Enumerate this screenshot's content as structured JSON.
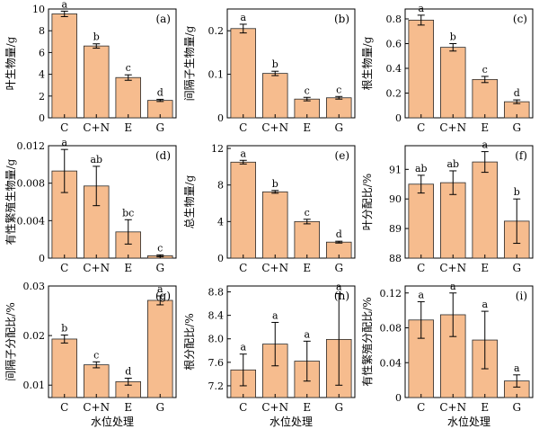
{
  "chart_data": [
    {
      "type": "bar",
      "panel_label": "(a)",
      "ylabel": "叶生物量/g",
      "xlabel": "",
      "categories": [
        "C",
        "C+N",
        "E",
        "G"
      ],
      "values": [
        9.55,
        6.6,
        3.7,
        1.6
      ],
      "errors": [
        0.25,
        0.2,
        0.25,
        0.1
      ],
      "letters": [
        "a",
        "b",
        "c",
        "d"
      ],
      "ylim": [
        0,
        10
      ],
      "yticks": [
        "0",
        "2",
        "4",
        "6",
        "8",
        "10"
      ]
    },
    {
      "type": "bar",
      "panel_label": "(b)",
      "ylabel": "间隔子生物量/g",
      "xlabel": "",
      "categories": [
        "C",
        "C+N",
        "E",
        "G"
      ],
      "values": [
        0.205,
        0.102,
        0.043,
        0.046
      ],
      "errors": [
        0.01,
        0.005,
        0.004,
        0.003
      ],
      "letters": [
        "a",
        "b",
        "c",
        "c"
      ],
      "ylim": [
        0,
        0.25
      ],
      "yticks": [
        "0",
        "0.1",
        "0.2"
      ]
    },
    {
      "type": "bar",
      "panel_label": "(c)",
      "ylabel": "根生物量/g",
      "xlabel": "",
      "categories": [
        "C",
        "C+N",
        "E",
        "G"
      ],
      "values": [
        0.79,
        0.57,
        0.31,
        0.13
      ],
      "errors": [
        0.04,
        0.03,
        0.025,
        0.015
      ],
      "letters": [
        "a",
        "b",
        "c",
        "d"
      ],
      "ylim": [
        0,
        0.88
      ],
      "yticks": [
        "0",
        "0.2",
        "0.4",
        "0.6",
        "0.8"
      ]
    },
    {
      "type": "bar",
      "panel_label": "(d)",
      "ylabel": "有性繁殖生物量/g",
      "xlabel": "",
      "categories": [
        "C",
        "C+N",
        "E",
        "G"
      ],
      "values": [
        0.0093,
        0.0077,
        0.0028,
        0.00025
      ],
      "errors": [
        0.0023,
        0.0021,
        0.0013,
        0.0001
      ],
      "letters": [
        "a",
        "ab",
        "bc",
        "c"
      ],
      "ylim": [
        0,
        0.012
      ],
      "yticks": [
        "0",
        "0.004",
        "0.008",
        "0.012"
      ]
    },
    {
      "type": "bar",
      "panel_label": "(e)",
      "ylabel": "总生物量/g",
      "xlabel": "",
      "categories": [
        "C",
        "C+N",
        "E",
        "G"
      ],
      "values": [
        10.5,
        7.25,
        4.0,
        1.75
      ],
      "errors": [
        0.2,
        0.15,
        0.25,
        0.1
      ],
      "letters": [
        "a",
        "b",
        "c",
        "d"
      ],
      "ylim": [
        0,
        12.3
      ],
      "yticks": [
        "0",
        "4",
        "8",
        "12"
      ]
    },
    {
      "type": "bar",
      "panel_label": "(f)",
      "ylabel": "叶分配比/%",
      "xlabel": "",
      "categories": [
        "C",
        "C+N",
        "E",
        "G"
      ],
      "values": [
        90.5,
        90.55,
        91.25,
        89.25
      ],
      "errors": [
        0.3,
        0.4,
        0.35,
        0.75
      ],
      "letters": [
        "ab",
        "ab",
        "a",
        "b"
      ],
      "ylim": [
        88,
        91.8
      ],
      "yticks": [
        "88",
        "89",
        "90",
        "91"
      ]
    },
    {
      "type": "bar",
      "panel_label": "(g)",
      "ylabel": "间隔子分配比/%",
      "xlabel": "水位处理",
      "categories": [
        "C",
        "C+N",
        "E",
        "G"
      ],
      "values": [
        0.0193,
        0.0141,
        0.0107,
        0.0271
      ],
      "errors": [
        0.0008,
        0.0006,
        0.0007,
        0.0009
      ],
      "letters": [
        "b",
        "c",
        "d",
        "a"
      ],
      "ylim": [
        0.0075,
        0.03
      ],
      "yticks": [
        "0.01",
        "0.02",
        "0.03"
      ]
    },
    {
      "type": "bar",
      "panel_label": "(h)",
      "ylabel": "根分配比/%",
      "xlabel": "水位处理",
      "categories": [
        "C",
        "C+N",
        "E",
        "G"
      ],
      "values": [
        7.47,
        7.91,
        7.62,
        7.99
      ],
      "errors": [
        0.27,
        0.37,
        0.34,
        0.78
      ],
      "letters": [
        "a",
        "a",
        "a",
        "a"
      ],
      "ylim": [
        7.0,
        8.9
      ],
      "yticks": [
        "7.2",
        "7.6",
        "8.0",
        "8.4",
        "8.8"
      ]
    },
    {
      "type": "bar",
      "panel_label": "(i)",
      "ylabel": "有性繁殖分配比/%",
      "xlabel": "水位处理",
      "categories": [
        "C",
        "C+N",
        "E",
        "G"
      ],
      "values": [
        0.089,
        0.095,
        0.066,
        0.019
      ],
      "errors": [
        0.021,
        0.025,
        0.033,
        0.007
      ],
      "letters": [
        "a",
        "a",
        "a",
        "a"
      ],
      "ylim": [
        0,
        0.128
      ],
      "yticks": [
        "0",
        "0.04",
        "0.08",
        "0.12"
      ]
    }
  ]
}
